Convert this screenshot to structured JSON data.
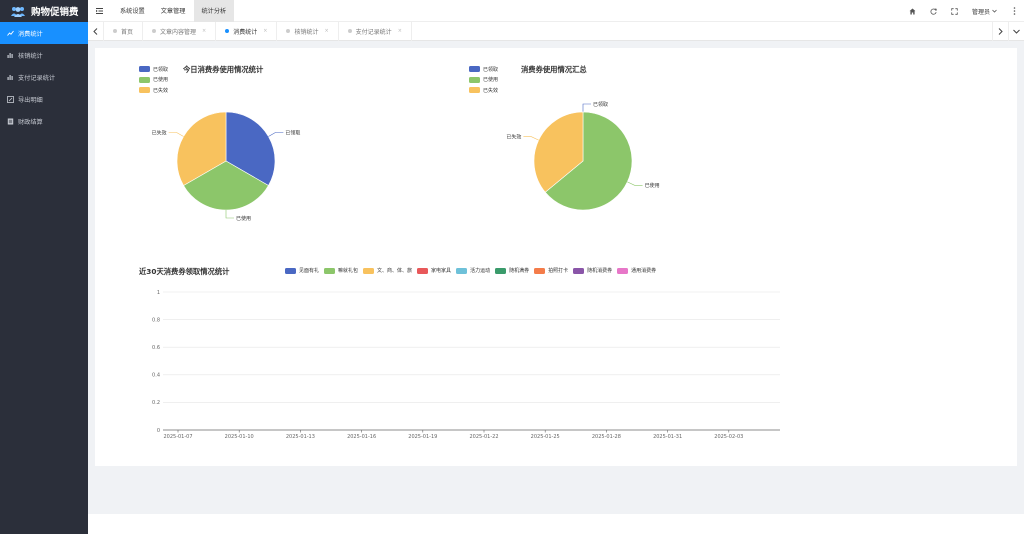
{
  "app": {
    "title": "购物促销费"
  },
  "sidebar": {
    "items": [
      {
        "label": "消费统计",
        "icon": "chart-icon",
        "active": true
      },
      {
        "label": "核销统计",
        "icon": "bar-chart-icon",
        "active": false
      },
      {
        "label": "支付记录统计",
        "icon": "bar-chart-icon",
        "active": false
      },
      {
        "label": "导出明细",
        "icon": "edit-icon",
        "active": false
      },
      {
        "label": "财政结算",
        "icon": "document-icon",
        "active": false
      }
    ]
  },
  "topbar": {
    "menus": [
      {
        "label": "系统设置",
        "active": false
      },
      {
        "label": "文章管理",
        "active": false
      },
      {
        "label": "统计分析",
        "active": true
      }
    ],
    "user_label": "管理员",
    "icons": [
      "home-icon",
      "refresh-icon",
      "fullscreen-icon"
    ]
  },
  "tabs": [
    {
      "label": "首页",
      "active": false
    },
    {
      "label": "文章内容管理",
      "active": false
    },
    {
      "label": "消费统计",
      "active": true
    },
    {
      "label": "核销统计",
      "active": false
    },
    {
      "label": "支付记录统计",
      "active": false
    }
  ],
  "colors": {
    "blue": "#4a68c3",
    "green": "#8cc66a",
    "yellow": "#f8c25e",
    "accent": "#1890ff",
    "sidebar": "#2b2f3a"
  },
  "chart_data": [
    {
      "type": "pie",
      "title": "今日消费券使用情况统计",
      "legend": [
        "已领取",
        "已使用",
        "已失效"
      ],
      "legend_position": "top-left",
      "slices": [
        {
          "name": "已领取",
          "value": 33.3,
          "color": "#4a68c3"
        },
        {
          "name": "已使用",
          "value": 33.3,
          "color": "#8cc66a"
        },
        {
          "name": "已失效",
          "value": 33.3,
          "color": "#f8c25e"
        }
      ]
    },
    {
      "type": "pie",
      "title": "消费券使用情况汇总",
      "legend": [
        "已领取",
        "已使用",
        "已失效"
      ],
      "legend_position": "top-left",
      "slices": [
        {
          "name": "已领取",
          "value": 0,
          "color": "#4a68c3"
        },
        {
          "name": "已使用",
          "value": 64,
          "color": "#8cc66a"
        },
        {
          "name": "已失效",
          "value": 36,
          "color": "#f8c25e"
        }
      ]
    },
    {
      "type": "line",
      "title": "近30天消费券领取情况统计",
      "legend_position": "top",
      "series": [
        {
          "name": "见面有礼",
          "color": "#4a68c3",
          "values": []
        },
        {
          "name": "嘛就礼包",
          "color": "#8cc66a",
          "values": []
        },
        {
          "name": "文、商、体、旅",
          "color": "#f8c25e",
          "values": []
        },
        {
          "name": "家电家具",
          "color": "#e8585a",
          "values": []
        },
        {
          "name": "活力运动",
          "color": "#6ec1d9",
          "values": []
        },
        {
          "name": "随机满券",
          "color": "#3a9b6b",
          "values": []
        },
        {
          "name": "拍照打卡",
          "color": "#f47c4a",
          "values": []
        },
        {
          "name": "随机消费券",
          "color": "#8a55a8",
          "values": []
        },
        {
          "name": "通用消费券",
          "color": "#e777c8",
          "values": []
        }
      ],
      "x_ticks": [
        "2025-01-07",
        "2025-01-10",
        "2025-01-13",
        "2025-01-16",
        "2025-01-19",
        "2025-01-22",
        "2025-01-25",
        "2025-01-28",
        "2025-01-31",
        "2025-02-03"
      ],
      "y_ticks": [
        "0",
        "0.2",
        "0.4",
        "0.6",
        "0.8",
        "1"
      ],
      "ylim": [
        0,
        1
      ],
      "grid": true
    }
  ]
}
